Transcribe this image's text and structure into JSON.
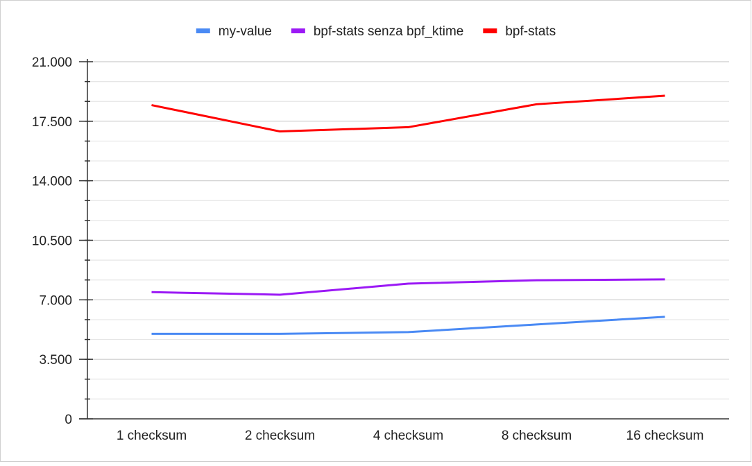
{
  "chart_data": {
    "type": "line",
    "categories": [
      "1 checksum",
      "2 checksum",
      "4 checksum",
      "8 checksum",
      "16 checksum"
    ],
    "series": [
      {
        "name": "my-value",
        "color": "#4a8af4",
        "values": [
          5000,
          5000,
          5100,
          5550,
          6000
        ]
      },
      {
        "name": "bpf-stats senza bpf_ktime",
        "color": "#9b19f5",
        "values": [
          7450,
          7300,
          7950,
          8150,
          8200
        ]
      },
      {
        "name": "bpf-stats",
        "color": "#ff0000",
        "values": [
          18450,
          16900,
          17150,
          18500,
          19000
        ]
      }
    ],
    "ylim": [
      0,
      21000
    ],
    "y_ticks": [
      "0",
      "3.500",
      "7.000",
      "10.500",
      "14.000",
      "17.500",
      "21.000"
    ],
    "y_tick_values": [
      0,
      3500,
      7000,
      10500,
      14000,
      17500,
      21000
    ],
    "grid": true,
    "legend_position": "top-center"
  }
}
